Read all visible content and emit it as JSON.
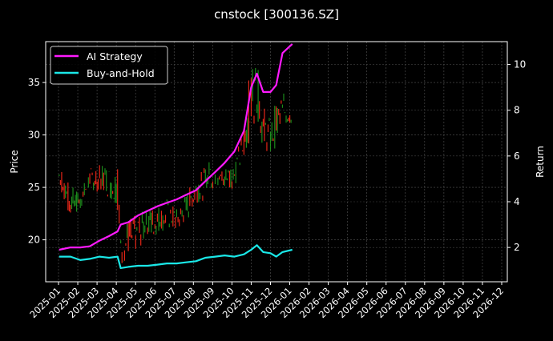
{
  "chart_data": {
    "type": "line",
    "title": "cnstock [300136.SZ]",
    "xlabel": "",
    "ylabel": "Price",
    "ylabel_right": "Return",
    "ylim": [
      16.0,
      38.9
    ],
    "ylim_right": [
      0.5,
      11.0
    ],
    "yticks": [
      20,
      25,
      30,
      35
    ],
    "yticks_right": [
      2,
      4,
      6,
      8,
      10
    ],
    "grid": true,
    "legend_position": "upper left",
    "x_tick_labels": [
      "2025-01",
      "2025-02",
      "2025-03",
      "2025-04",
      "2025-05",
      "2025-06",
      "2025-07",
      "2025-08",
      "2025-09",
      "2025-10",
      "2025-11",
      "2025-12",
      "2026-01",
      "2026-02",
      "2026-03",
      "2026-04",
      "2026-05",
      "2026-06",
      "2026-07",
      "2026-08",
      "2026-09",
      "2026-10",
      "2026-11",
      "2026-12"
    ],
    "x": [
      "2025-01-02",
      "2025-01-20",
      "2025-02-05",
      "2025-02-20",
      "2025-03-05",
      "2025-03-20",
      "2025-04-03",
      "2025-04-08",
      "2025-04-20",
      "2025-05-05",
      "2025-05-20",
      "2025-06-05",
      "2025-06-20",
      "2025-07-05",
      "2025-07-20",
      "2025-08-05",
      "2025-08-20",
      "2025-09-05",
      "2025-09-20",
      "2025-10-05",
      "2025-10-20",
      "2025-11-01",
      "2025-11-10",
      "2025-11-20",
      "2025-12-01",
      "2025-12-10",
      "2025-12-20",
      "2026-01-05"
    ],
    "price": {
      "name": "Price (OHLC candles)",
      "up_color": "#ff2a1a",
      "down_color": "#1f9a1f",
      "high": [
        27.2,
        25.2,
        24.5,
        26.8,
        27.5,
        27.0,
        28.0,
        21.0,
        22.0,
        22.5,
        23.0,
        23.2,
        24.0,
        23.0,
        24.5,
        26.0,
        27.0,
        28.5,
        27.0,
        27.5,
        31.0,
        37.5,
        37.0,
        33.0,
        31.5,
        33.5,
        34.0,
        33.8
      ],
      "low": [
        25.0,
        22.0,
        22.8,
        24.8,
        24.5,
        24.0,
        22.8,
        17.3,
        18.5,
        19.0,
        20.0,
        20.5,
        21.0,
        20.8,
        21.5,
        23.5,
        23.8,
        25.0,
        24.5,
        25.0,
        27.5,
        30.0,
        32.0,
        28.0,
        27.8,
        29.0,
        30.5,
        31.0
      ]
    },
    "series": [
      {
        "name": "AI Strategy",
        "color": "#ff1aff",
        "axis": "right",
        "values": [
          1.9,
          2.0,
          2.0,
          2.05,
          2.3,
          2.5,
          2.7,
          3.0,
          3.1,
          3.4,
          3.6,
          3.8,
          3.95,
          4.1,
          4.3,
          4.5,
          4.9,
          5.3,
          5.7,
          6.2,
          7.1,
          9.0,
          9.6,
          8.8,
          8.8,
          9.1,
          10.5,
          10.9
        ]
      },
      {
        "name": "Buy-and-Hold",
        "color": "#1ae8e8",
        "axis": "right",
        "values": [
          1.6,
          1.6,
          1.45,
          1.5,
          1.6,
          1.55,
          1.6,
          1.1,
          1.15,
          1.2,
          1.2,
          1.25,
          1.3,
          1.3,
          1.35,
          1.4,
          1.55,
          1.6,
          1.65,
          1.6,
          1.7,
          1.9,
          2.1,
          1.8,
          1.75,
          1.6,
          1.8,
          1.9
        ]
      }
    ]
  },
  "legend": {
    "items": [
      {
        "label": "AI Strategy",
        "color": "#ff1aff"
      },
      {
        "label": "Buy-and-Hold",
        "color": "#1ae8e8"
      }
    ]
  }
}
